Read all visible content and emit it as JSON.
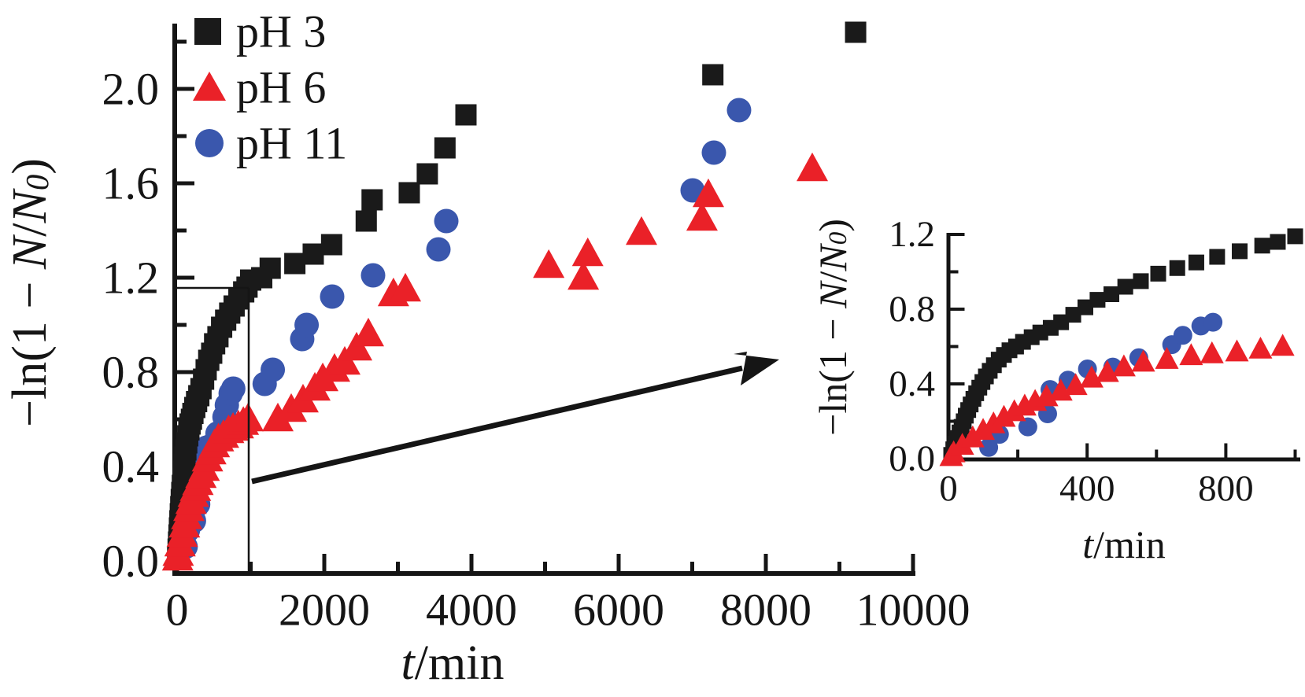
{
  "figure": {
    "legend": {
      "items": [
        {
          "label": "pH 3",
          "marker": "square",
          "color": "#1a1a1a"
        },
        {
          "label": "pH 6",
          "marker": "triangle",
          "color": "#ea2128"
        },
        {
          "label": "pH 11",
          "marker": "circle",
          "color": "#3a57ad"
        }
      ]
    }
  },
  "chart_data": {
    "type": "scatter",
    "title": "",
    "colors": {
      "ph3": "#1a1a1a",
      "ph6": "#ea2128",
      "ph11": "#3a57ad",
      "axis": "#151515"
    },
    "main": {
      "xlabel_parts": [
        {
          "t": "t",
          "i": true
        },
        {
          "t": "/min",
          "i": false
        }
      ],
      "ylabel_parts": [
        {
          "t": "−ln(1 − ",
          "i": false
        },
        {
          "t": "N",
          "i": true
        },
        {
          "t": "/",
          "i": false
        },
        {
          "t": "N",
          "i": true
        },
        {
          "t": "0",
          "i": true,
          "sub": true
        },
        {
          "t": ")",
          "i": false
        }
      ],
      "xlim": [
        0,
        10300
      ],
      "ylim": [
        0,
        2.3
      ],
      "grid": false,
      "x_major_ticks": [
        0,
        2000,
        4000,
        6000,
        8000,
        10000
      ],
      "x_minor_ticks": [
        1000,
        3000,
        5000,
        7000,
        9000
      ],
      "y_major_ticks": [
        0.4,
        0.8,
        1.2,
        1.6,
        2.0
      ],
      "y_minor_ticks": [
        0.2,
        0.6,
        1.0,
        1.4,
        1.8,
        2.2
      ],
      "x_tick_labels": [
        {
          "t": 0,
          "label": "0"
        },
        {
          "t": 2000,
          "label": "2000"
        },
        {
          "t": 4000,
          "label": "4000"
        },
        {
          "t": 6000,
          "label": "6000"
        },
        {
          "t": 8000,
          "label": "8000"
        },
        {
          "t": 10000,
          "label": "10000"
        }
      ],
      "y_tick_labels": [
        {
          "v": 0.0,
          "label": "0.0"
        },
        {
          "v": 0.4,
          "label": "0.4"
        },
        {
          "v": 0.8,
          "label": "0.8"
        },
        {
          "v": 1.2,
          "label": "1.2"
        },
        {
          "v": 1.6,
          "label": "1.6"
        },
        {
          "v": 2.0,
          "label": "2.0"
        }
      ]
    },
    "inset": {
      "xlabel_parts": [
        {
          "t": "t",
          "i": true
        },
        {
          "t": "/min",
          "i": false
        }
      ],
      "ylabel_parts": [
        {
          "t": "−ln(1 − ",
          "i": false
        },
        {
          "t": "N",
          "i": true
        },
        {
          "t": "/",
          "i": false
        },
        {
          "t": "N",
          "i": true
        },
        {
          "t": "0",
          "i": true,
          "sub": true
        },
        {
          "t": ")",
          "i": false
        }
      ],
      "xlim": [
        0,
        1020
      ],
      "ylim": [
        0,
        1.2
      ],
      "grid": false,
      "x_major_ticks": [
        400,
        800
      ],
      "x_minor_ticks": [
        200,
        600,
        1000
      ],
      "y_major_ticks": [
        0.4,
        0.8,
        1.2
      ],
      "y_minor_ticks": [
        0.2,
        0.6,
        1.0
      ],
      "x_tick_labels": [
        {
          "t": 0,
          "label": "0"
        },
        {
          "t": 400,
          "label": "400"
        },
        {
          "t": 800,
          "label": "800"
        }
      ],
      "y_tick_labels": [
        {
          "v": 0.0,
          "label": "0.0"
        },
        {
          "v": 0.4,
          "label": "0.4"
        },
        {
          "v": 0.8,
          "label": "0.8"
        },
        {
          "v": 1.2,
          "label": "1.2"
        }
      ]
    },
    "zoom_region": {
      "t_range": [
        0,
        1000
      ],
      "v_range": [
        0,
        1.2
      ],
      "note": "thin lines on main plot mark region enlarged in inset; arrow points to inset"
    },
    "series": [
      {
        "name": "pH 3",
        "key": "ph3",
        "marker": "square",
        "color": "#1a1a1a",
        "points_early": [
          [
            8,
            0.02
          ],
          [
            14,
            0.05
          ],
          [
            20,
            0.08
          ],
          [
            26,
            0.11
          ],
          [
            32,
            0.14
          ],
          [
            38,
            0.17
          ],
          [
            44,
            0.2
          ],
          [
            50,
            0.23
          ],
          [
            57,
            0.26
          ],
          [
            64,
            0.29
          ],
          [
            72,
            0.32
          ],
          [
            80,
            0.35
          ],
          [
            89,
            0.38
          ],
          [
            98,
            0.41
          ],
          [
            108,
            0.44
          ],
          [
            119,
            0.47
          ],
          [
            131,
            0.5
          ],
          [
            145,
            0.53
          ],
          [
            160,
            0.555
          ],
          [
            176,
            0.58
          ],
          [
            195,
            0.6
          ],
          [
            215,
            0.625
          ],
          [
            240,
            0.65
          ],
          [
            265,
            0.675
          ],
          [
            295,
            0.7
          ],
          [
            325,
            0.73
          ],
          [
            360,
            0.77
          ],
          [
            395,
            0.81
          ],
          [
            430,
            0.85
          ],
          [
            470,
            0.88
          ],
          [
            510,
            0.92
          ],
          [
            555,
            0.95
          ],
          [
            605,
            0.99
          ],
          [
            660,
            1.02
          ],
          [
            715,
            1.05
          ],
          [
            775,
            1.08
          ],
          [
            840,
            1.11
          ],
          [
            905,
            1.14
          ],
          [
            950,
            1.16
          ],
          [
            1000,
            1.19
          ]
        ],
        "points_late": [
          [
            1150,
            1.2
          ],
          [
            1265,
            1.24
          ],
          [
            1600,
            1.26
          ],
          [
            1850,
            1.3
          ],
          [
            2100,
            1.34
          ],
          [
            2570,
            1.44
          ],
          [
            2650,
            1.53
          ],
          [
            3155,
            1.56
          ],
          [
            3400,
            1.64
          ],
          [
            3640,
            1.75
          ],
          [
            3925,
            1.89
          ],
          [
            7280,
            2.06
          ],
          [
            9220,
            2.24
          ]
        ]
      },
      {
        "name": "pH 6",
        "key": "ph6",
        "marker": "triangle",
        "color": "#ea2128",
        "points_early": [
          [
            8,
            0.01
          ],
          [
            15,
            0.03
          ],
          [
            40,
            0.07
          ],
          [
            70,
            0.11
          ],
          [
            100,
            0.15
          ],
          [
            130,
            0.185
          ],
          [
            160,
            0.22
          ],
          [
            190,
            0.25
          ],
          [
            220,
            0.28
          ],
          [
            250,
            0.305
          ],
          [
            283,
            0.33
          ],
          [
            324,
            0.36
          ],
          [
            367,
            0.39
          ],
          [
            413,
            0.43
          ],
          [
            458,
            0.46
          ],
          [
            506,
            0.49
          ],
          [
            562,
            0.515
          ],
          [
            630,
            0.53
          ],
          [
            700,
            0.55
          ],
          [
            760,
            0.56
          ],
          [
            832,
            0.57
          ],
          [
            900,
            0.585
          ],
          [
            964,
            0.6
          ]
        ],
        "points_late": [
          [
            1369,
            0.6
          ],
          [
            1551,
            0.64
          ],
          [
            1711,
            0.68
          ],
          [
            1872,
            0.73
          ],
          [
            1979,
            0.77
          ],
          [
            2139,
            0.81
          ],
          [
            2278,
            0.84
          ],
          [
            2439,
            0.9
          ],
          [
            2599,
            0.96
          ],
          [
            2940,
            1.13
          ],
          [
            3102,
            1.15
          ],
          [
            5050,
            1.25
          ],
          [
            5520,
            1.2
          ],
          [
            5580,
            1.3
          ],
          [
            6310,
            1.39
          ],
          [
            7133,
            1.45
          ],
          [
            7219,
            1.55
          ],
          [
            8631,
            1.66
          ]
        ]
      },
      {
        "name": "pH 11",
        "key": "ph11",
        "marker": "circle",
        "color": "#3a57ad",
        "points_early": [
          [
            116,
            0.06
          ],
          [
            147,
            0.13
          ],
          [
            229,
            0.17
          ],
          [
            286,
            0.24
          ],
          [
            293,
            0.37
          ],
          [
            345,
            0.42
          ],
          [
            401,
            0.48
          ],
          [
            474,
            0.49
          ],
          [
            549,
            0.54
          ],
          [
            644,
            0.61
          ],
          [
            676,
            0.66
          ],
          [
            728,
            0.71
          ],
          [
            763,
            0.73
          ]
        ],
        "points_late": [
          [
            1190,
            0.75
          ],
          [
            1300,
            0.81
          ],
          [
            1700,
            0.94
          ],
          [
            1760,
            1.0
          ],
          [
            2107,
            1.12
          ],
          [
            2663,
            1.21
          ],
          [
            3551,
            1.32
          ],
          [
            3658,
            1.44
          ],
          [
            7005,
            1.57
          ],
          [
            7294,
            1.73
          ],
          [
            7636,
            1.91
          ]
        ]
      }
    ]
  }
}
